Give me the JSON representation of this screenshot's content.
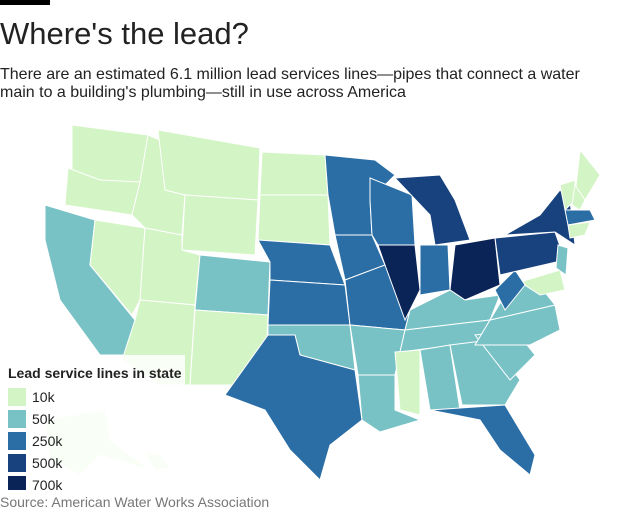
{
  "header": {
    "title": "Where's the lead?",
    "subtitle": "There are an estimated 6.1 million lead services lines—pipes that connect a water main to a building's plumbing—still in use across America"
  },
  "legend": {
    "title": "Lead service lines in state",
    "items": [
      {
        "label": "10k",
        "color": "#d3f4c4"
      },
      {
        "label": "50k",
        "color": "#78c2c6"
      },
      {
        "label": "250k",
        "color": "#2b6ea5"
      },
      {
        "label": "500k",
        "color": "#17427d"
      },
      {
        "label": "700k",
        "color": "#0b2457"
      }
    ]
  },
  "map": {
    "levels": [
      0,
      0,
      1,
      0,
      0,
      0,
      0,
      0,
      0,
      1,
      0,
      0,
      0,
      2,
      2,
      1,
      2,
      2,
      2,
      2,
      1,
      1,
      2,
      4,
      3,
      2,
      4,
      1,
      1,
      0,
      1,
      1,
      2,
      1,
      1,
      1,
      0,
      2,
      3,
      3,
      1,
      0,
      0,
      0,
      2,
      0,
      0,
      0
    ]
  },
  "source": "Source: American Water Works Association"
}
